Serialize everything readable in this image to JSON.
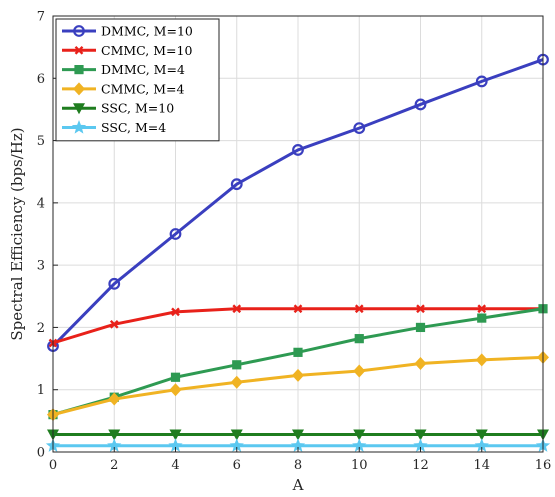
{
  "chart_data": {
    "type": "line",
    "xlabel": "A",
    "ylabel": "Spectral Efficiency (bps/Hz)",
    "xlim": [
      0,
      16
    ],
    "ylim": [
      0,
      7
    ],
    "xticks": [
      0,
      2,
      4,
      6,
      8,
      10,
      12,
      14,
      16
    ],
    "yticks": [
      0,
      1,
      2,
      3,
      4,
      5,
      6,
      7
    ],
    "grid": true,
    "legend_position": "top-left",
    "x": [
      0,
      2,
      4,
      6,
      8,
      10,
      12,
      14,
      16
    ],
    "series": [
      {
        "name": "DMMC, M=10",
        "color": "#3a3fbf",
        "marker": "circle",
        "values": [
          1.7,
          2.7,
          3.5,
          4.3,
          4.85,
          5.2,
          5.58,
          5.95,
          6.3
        ]
      },
      {
        "name": "CMMC, M=10",
        "color": "#e8211a",
        "marker": "x",
        "values": [
          1.75,
          2.05,
          2.25,
          2.3,
          2.3,
          2.3,
          2.3,
          2.3,
          2.3
        ]
      },
      {
        "name": "DMMC, M=4",
        "color": "#2e9a52",
        "marker": "square",
        "values": [
          0.6,
          0.88,
          1.2,
          1.4,
          1.6,
          1.82,
          2.0,
          2.15,
          2.3
        ]
      },
      {
        "name": "CMMC, M=4",
        "color": "#f0b323",
        "marker": "diamond",
        "values": [
          0.6,
          0.85,
          1.0,
          1.12,
          1.23,
          1.3,
          1.42,
          1.48,
          1.52
        ]
      },
      {
        "name": "SSC, M=10",
        "color": "#1f7d1f",
        "marker": "triangle-down",
        "values": [
          0.28,
          0.28,
          0.28,
          0.28,
          0.28,
          0.28,
          0.28,
          0.28,
          0.28
        ]
      },
      {
        "name": "SSC, M=4",
        "color": "#5bc8f0",
        "marker": "star",
        "values": [
          0.1,
          0.1,
          0.1,
          0.1,
          0.1,
          0.1,
          0.1,
          0.1,
          0.1
        ]
      }
    ]
  }
}
